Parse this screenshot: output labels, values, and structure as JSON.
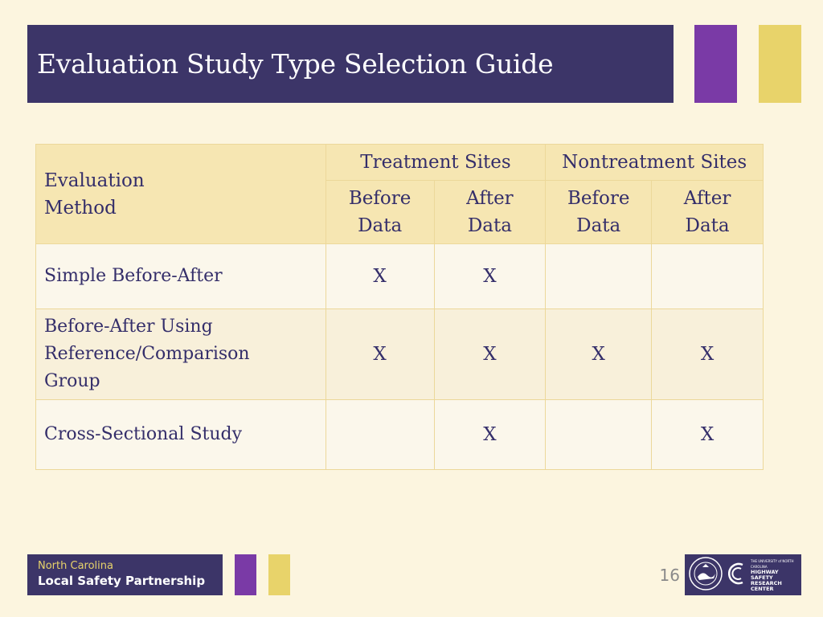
{
  "slide": {
    "title": "Evaluation Study Type Selection Guide",
    "page_number": "16"
  },
  "table": {
    "method_header": [
      "Evaluation",
      "Method"
    ],
    "groups": [
      "Treatment Sites",
      "Nontreatment Sites"
    ],
    "sub_headers": [
      [
        "Before",
        "Data"
      ],
      [
        "After",
        "Data"
      ],
      [
        "Before",
        "Data"
      ],
      [
        "After",
        "Data"
      ]
    ],
    "rows": [
      {
        "method": [
          "Simple Before-After"
        ],
        "marks": [
          "X",
          "X",
          "",
          ""
        ]
      },
      {
        "method": [
          "Before-After Using",
          "Reference/Comparison",
          "Group"
        ],
        "marks": [
          "X",
          "X",
          "X",
          "X"
        ]
      },
      {
        "method": [
          "Cross-Sectional Study"
        ],
        "marks": [
          "",
          "X",
          "",
          "X"
        ]
      }
    ]
  },
  "footer": {
    "logo_line1": "North Carolina",
    "logo_line2": "Local Safety Partnership",
    "partner_line1": "THE UNIVERSITY of NORTH CAROLINA",
    "partner_line2": "HIGHWAY SAFETY",
    "partner_line3": "RESEARCH CENTER"
  },
  "colors": {
    "background": "#fcf5df",
    "navy": "#3c3568",
    "purple": "#7a3aa6",
    "yellow": "#e8d36a",
    "header_fill": "#f6e6b2",
    "text": "#342e6a"
  },
  "icons": [
    "ncdot-seal-icon",
    "hsrc-logo-icon"
  ]
}
